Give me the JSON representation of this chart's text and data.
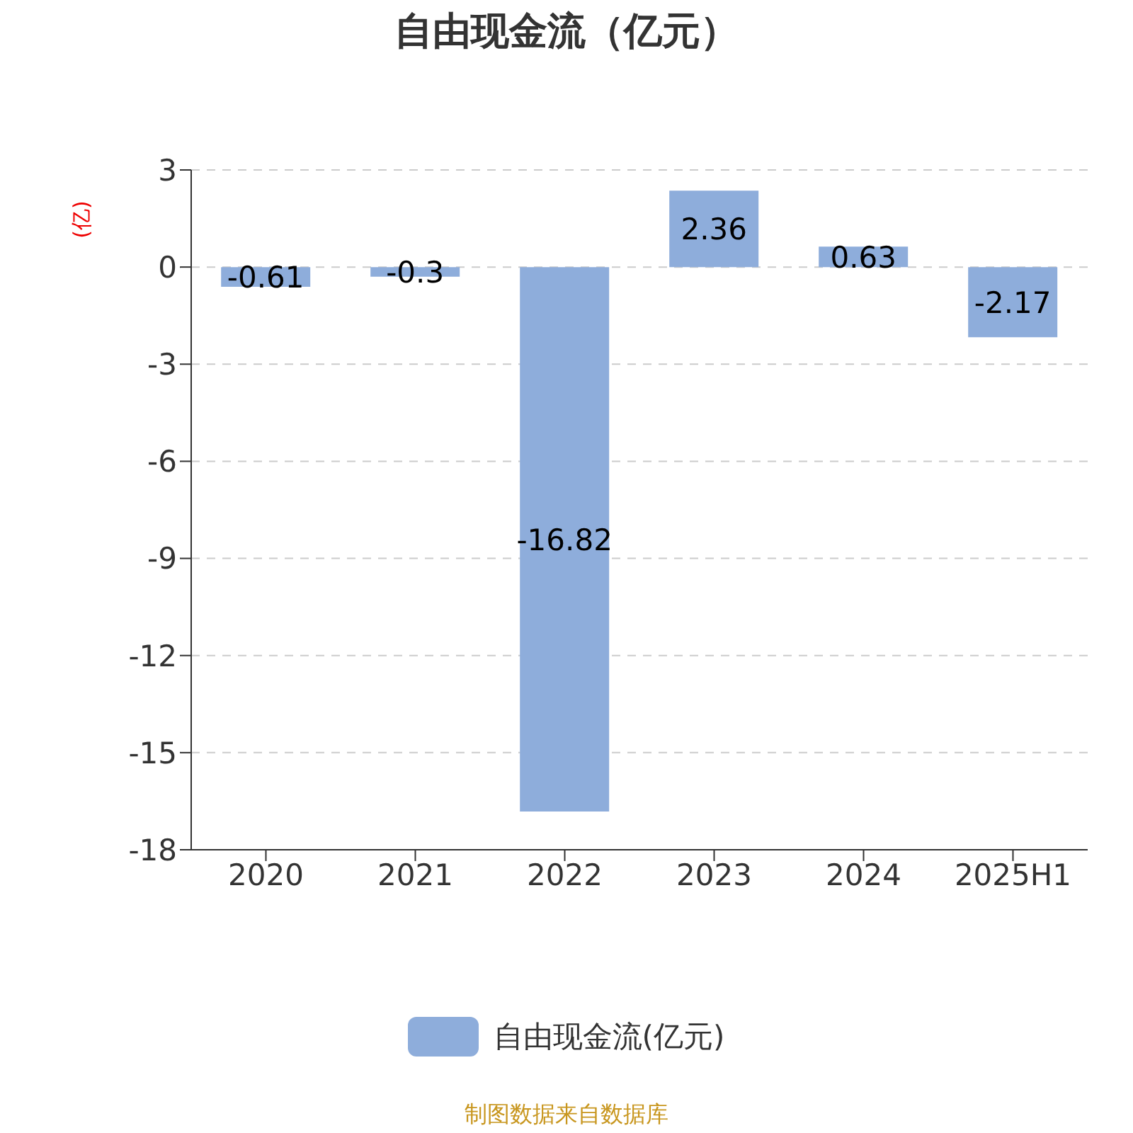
{
  "chart_data": {
    "type": "bar",
    "title": "自由现金流（亿元）",
    "ylabel": "(亿)",
    "categories": [
      "2020",
      "2021",
      "2022",
      "2023",
      "2024",
      "2025H1"
    ],
    "series": [
      {
        "name": "自由现金流(亿元)",
        "color": "#8eaddb",
        "values": [
          -0.61,
          -0.3,
          -16.82,
          2.36,
          0.63,
          -2.17
        ]
      }
    ],
    "ylim": [
      -18,
      3
    ],
    "yticks": [
      -18,
      -15,
      -12,
      -9,
      -6,
      -3,
      0,
      3
    ],
    "grid": "y",
    "legend": "bottom",
    "data_labels": true,
    "annotations": [
      "制图数据来自数据库"
    ]
  }
}
